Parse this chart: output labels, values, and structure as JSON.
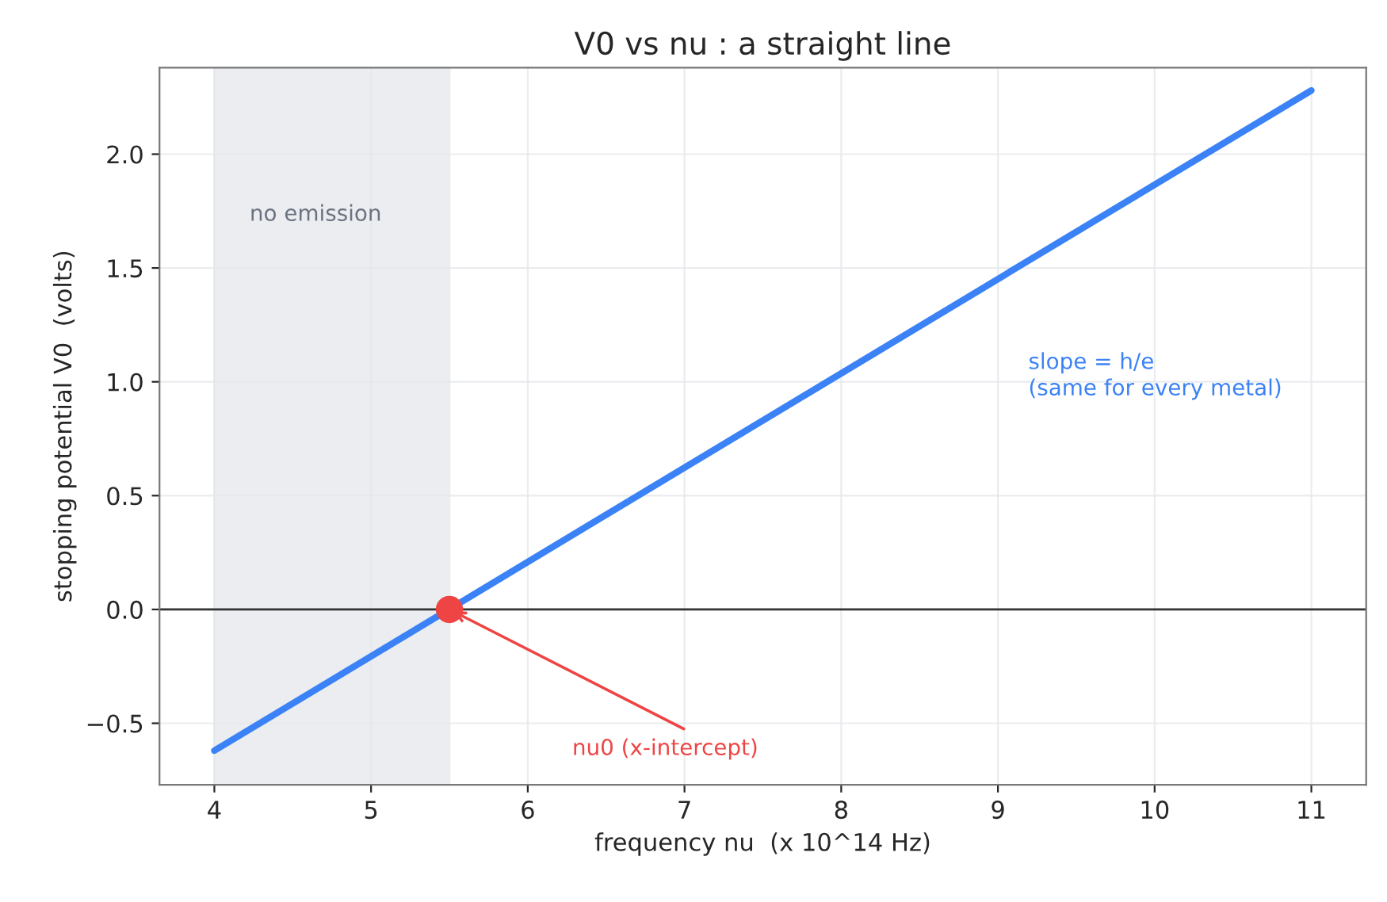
{
  "chart_data": {
    "type": "line",
    "title": "V0 vs nu : a straight line",
    "xlabel": "frequency nu  (x 10^14 Hz)",
    "ylabel": "stopping potential V0  (volts)",
    "series": [
      {
        "color": "#3b82f6",
        "x": [
          4,
          11
        ],
        "values": [
          -0.62,
          2.28
        ]
      },
      {
        "type": "scatter",
        "color": "#ef4444",
        "x": [
          5.5
        ],
        "values": [
          0
        ],
        "marker": "circle"
      }
    ],
    "xlim": [
      3.65,
      11.35
    ],
    "ylim": [
      -0.77,
      2.38
    ],
    "xticks": [
      4,
      5,
      6,
      7,
      8,
      9,
      10,
      11
    ],
    "yticks": [
      {
        "value": -0.5,
        "label": "−0.5"
      },
      {
        "value": 0,
        "label": "0.0"
      },
      0.5,
      {
        "value": 1,
        "label": "1.0"
      },
      1.5,
      {
        "value": 2,
        "label": "2.0"
      }
    ],
    "grid": true,
    "ref_lines": [
      {
        "axis": "y",
        "value": 0,
        "color": "#333333"
      }
    ],
    "bands": [
      {
        "axis": "x",
        "from": 4,
        "to": 5.5,
        "label": "no emission",
        "color": "#e5e7eb"
      }
    ],
    "annotations": [
      {
        "text": "nu0 (x-intercept)",
        "x": 5.5,
        "y": 0
      },
      "slope = h/e\n(same for every metal)"
    ]
  }
}
